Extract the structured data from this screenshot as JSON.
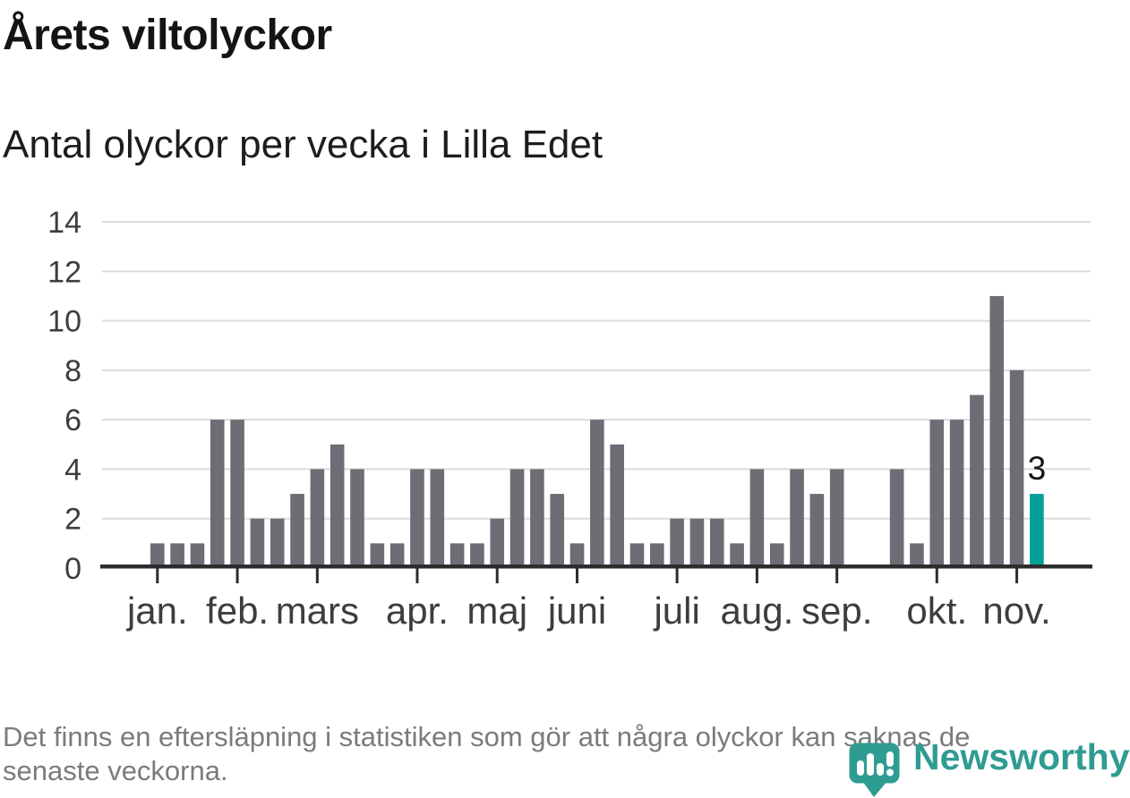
{
  "header": {
    "title": "Årets viltolyckor",
    "subtitle": "Antal olyckor per vecka i Lilla Edet"
  },
  "chart_data": {
    "type": "bar",
    "title": "Årets viltolyckor",
    "subtitle": "Antal olyckor per vecka i Lilla Edet",
    "x_unit": "vecka",
    "values": [
      1,
      1,
      1,
      6,
      6,
      2,
      2,
      3,
      4,
      5,
      4,
      1,
      1,
      4,
      4,
      1,
      1,
      2,
      4,
      4,
      3,
      1,
      6,
      5,
      1,
      1,
      2,
      2,
      2,
      1,
      4,
      1,
      4,
      3,
      4,
      0,
      0,
      4,
      1,
      6,
      6,
      7,
      11,
      8,
      3
    ],
    "highlight_last_index": 44,
    "annotation": {
      "index": 44,
      "text": "3"
    },
    "month_ticks": [
      {
        "label": "jan.",
        "slot": 0
      },
      {
        "label": "feb.",
        "slot": 4
      },
      {
        "label": "mars",
        "slot": 8
      },
      {
        "label": "apr.",
        "slot": 13
      },
      {
        "label": "maj",
        "slot": 17
      },
      {
        "label": "juni",
        "slot": 21
      },
      {
        "label": "juli",
        "slot": 26
      },
      {
        "label": "aug.",
        "slot": 30
      },
      {
        "label": "sep.",
        "slot": 34
      },
      {
        "label": "okt.",
        "slot": 39
      },
      {
        "label": "nov.",
        "slot": 43
      }
    ],
    "yticks": [
      0,
      2,
      4,
      6,
      8,
      10,
      12,
      14
    ],
    "ylim": [
      0,
      14
    ],
    "grid": "horizontal",
    "legend": "none",
    "colors": {
      "bar": "#6e6c74",
      "highlight": "#009f97",
      "grid": "#dcdcdc",
      "axis": "#2d2d2d",
      "axis_text": "#3d3d3d",
      "annotation_text": "#161616"
    }
  },
  "footer": {
    "lines": [
      "Det finns en eftersläpning i statistiken som gör att några olyckor kan saknas de",
      "senaste veckorna."
    ]
  },
  "logo": {
    "text": "Newsworthy",
    "color": "#2f9c92"
  }
}
